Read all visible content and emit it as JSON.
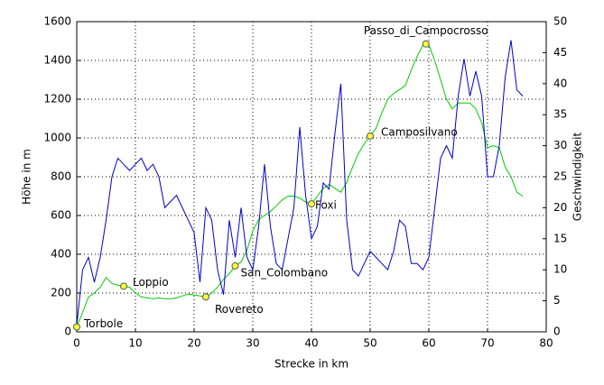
{
  "chart_data": {
    "type": "line",
    "xlabel": "Strecke in km",
    "ylabel": "Höhe in m",
    "y2label": "Geschwindigkeit",
    "x": [
      0,
      1,
      2,
      3,
      4,
      5,
      6,
      7,
      8,
      9,
      10,
      11,
      12,
      13,
      14,
      15,
      16,
      17,
      18,
      19,
      20,
      21,
      22,
      23,
      24,
      25,
      26,
      27,
      28,
      29,
      30,
      31,
      32,
      33,
      34,
      35,
      36,
      37,
      38,
      39,
      40,
      41,
      42,
      43,
      44,
      45,
      46,
      47,
      48,
      49,
      50,
      51,
      52,
      53,
      54,
      55,
      56,
      57,
      58,
      59,
      60,
      61,
      62,
      63,
      64,
      65,
      66,
      67,
      68,
      69,
      70,
      71,
      72,
      73,
      74,
      75,
      76
    ],
    "series": [
      {
        "color": "#00cc00",
        "values": [
          25,
          100,
          180,
          200,
          230,
          280,
          250,
          240,
          235,
          230,
          200,
          180,
          175,
          170,
          175,
          170,
          170,
          175,
          185,
          195,
          190,
          185,
          180,
          200,
          230,
          270,
          300,
          340,
          360,
          420,
          520,
          580,
          600,
          620,
          650,
          680,
          700,
          700,
          690,
          670,
          660,
          700,
          740,
          760,
          740,
          720,
          770,
          850,
          920,
          970,
          1010,
          1050,
          1130,
          1200,
          1230,
          1250,
          1270,
          1350,
          1420,
          1480,
          1480,
          1400,
          1300,
          1200,
          1150,
          1180,
          1180,
          1180,
          1150,
          1080,
          950,
          960,
          950,
          850,
          800,
          720,
          700
        ]
      },
      {
        "color": "#0000cc",
        "axis": "y2",
        "values": [
          1,
          10,
          12,
          8,
          12,
          18,
          25,
          28,
          27,
          26,
          27,
          28,
          26,
          27,
          25,
          20,
          21,
          22,
          20,
          18,
          16,
          8,
          20,
          18,
          10,
          6,
          18,
          12,
          20,
          12,
          10,
          17,
          27,
          17,
          11,
          10,
          15,
          20,
          33,
          22,
          15,
          17,
          24,
          23,
          32,
          40,
          18,
          10,
          9,
          11,
          13,
          12,
          11,
          10,
          13,
          18,
          17,
          11,
          11,
          10,
          12,
          20,
          28,
          30,
          28,
          38,
          44,
          38,
          42,
          38,
          25,
          25,
          30,
          41,
          47,
          39,
          38
        ]
      }
    ],
    "waypoints": [
      {
        "label": "Torbole",
        "x": 0,
        "y": 25
      },
      {
        "label": "Loppio",
        "x": 8,
        "y": 235
      },
      {
        "label": "Rovereto",
        "x": 22,
        "y": 180
      },
      {
        "label": "San_Colombano",
        "x": 27,
        "y": 340
      },
      {
        "label": "Foxi",
        "x": 40,
        "y": 660
      },
      {
        "label": "Camposilvano",
        "x": 50,
        "y": 1010
      },
      {
        "label": "Passo_di_Campocrosso",
        "x": 59.5,
        "y": 1485
      }
    ],
    "xlim": [
      0,
      80
    ],
    "xticks": [
      0,
      10,
      20,
      30,
      40,
      50,
      60,
      70,
      80
    ],
    "ylim": [
      0,
      1600
    ],
    "yticks": [
      0,
      200,
      400,
      600,
      800,
      1000,
      1200,
      1400,
      1600
    ],
    "y2lim": [
      0,
      50
    ],
    "y2ticks": [
      0,
      5,
      10,
      15,
      20,
      25,
      30,
      35,
      40,
      45,
      50
    ],
    "grid": true
  }
}
